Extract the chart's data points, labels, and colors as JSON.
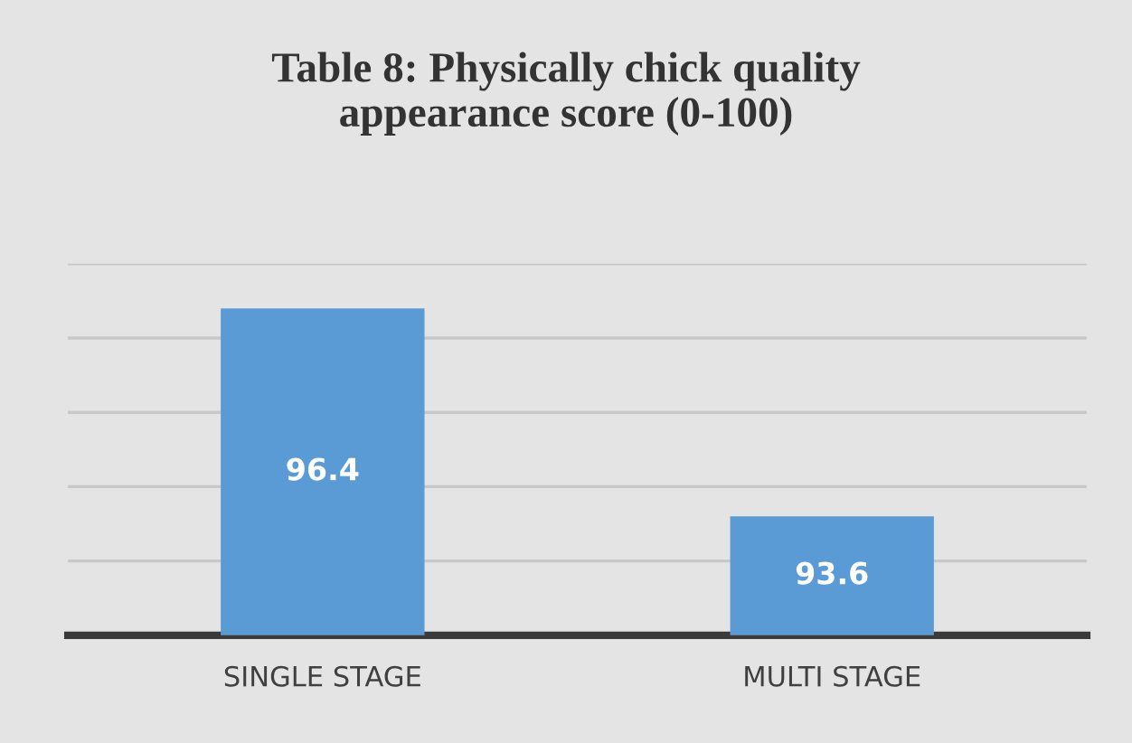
{
  "chart_data": {
    "type": "bar",
    "title": "Table 8: Physically chick quality\nappearance score (0-100)",
    "categories": [
      "SINGLE STAGE",
      "MULTI STAGE"
    ],
    "values": [
      96.4,
      93.6
    ],
    "color": "#5b9bd5",
    "ylim": [
      92,
      97
    ],
    "yticks": [
      {
        "value": 93,
        "label": null
      },
      {
        "value": 94,
        "label": null
      },
      {
        "value": 95,
        "label": null
      },
      {
        "value": 96,
        "label": null
      },
      {
        "value": 97,
        "label": null
      }
    ],
    "tick_labels": "x",
    "grid": "y",
    "data_labels": true
  }
}
